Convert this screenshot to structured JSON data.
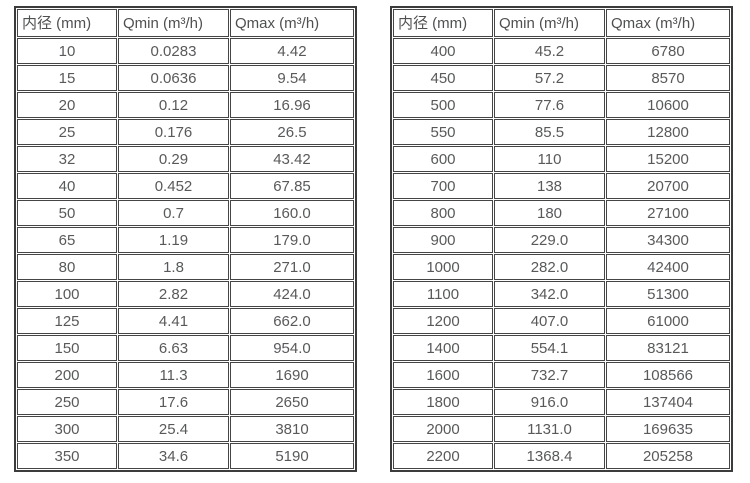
{
  "colors": {
    "background": "#ffffff",
    "border_outer": "#3c3c3c",
    "border_inner": "#454545",
    "text": "#58595b"
  },
  "tables": {
    "left": {
      "headers": [
        "内径 (mm)",
        "Qmin (m³/h)",
        "Qmax (m³/h)"
      ],
      "rows": [
        [
          "10",
          "0.0283",
          "4.42"
        ],
        [
          "15",
          "0.0636",
          "9.54"
        ],
        [
          "20",
          "0.12",
          "16.96"
        ],
        [
          "25",
          "0.176",
          "26.5"
        ],
        [
          "32",
          "0.29",
          "43.42"
        ],
        [
          "40",
          "0.452",
          "67.85"
        ],
        [
          "50",
          "0.7",
          "160.0"
        ],
        [
          "65",
          "1.19",
          "179.0"
        ],
        [
          "80",
          "1.8",
          "271.0"
        ],
        [
          "100",
          "2.82",
          "424.0"
        ],
        [
          "125",
          "4.41",
          "662.0"
        ],
        [
          "150",
          "6.63",
          "954.0"
        ],
        [
          "200",
          "11.3",
          "1690"
        ],
        [
          "250",
          "17.6",
          "2650"
        ],
        [
          "300",
          "25.4",
          "3810"
        ],
        [
          "350",
          "34.6",
          "5190"
        ]
      ]
    },
    "right": {
      "headers": [
        "内径 (mm)",
        "Qmin (m³/h)",
        "Qmax (m³/h)"
      ],
      "rows": [
        [
          "400",
          "45.2",
          "6780"
        ],
        [
          "450",
          "57.2",
          "8570"
        ],
        [
          "500",
          "77.6",
          "10600"
        ],
        [
          "550",
          "85.5",
          "12800"
        ],
        [
          "600",
          "110",
          "15200"
        ],
        [
          "700",
          "138",
          "20700"
        ],
        [
          "800",
          "180",
          "27100"
        ],
        [
          "900",
          "229.0",
          "34300"
        ],
        [
          "1000",
          "282.0",
          "42400"
        ],
        [
          "1100",
          "342.0",
          "51300"
        ],
        [
          "1200",
          "407.0",
          "61000"
        ],
        [
          "1400",
          "554.1",
          "83121"
        ],
        [
          "1600",
          "732.7",
          "108566"
        ],
        [
          "1800",
          "916.0",
          "137404"
        ],
        [
          "2000",
          "1131.0",
          "169635"
        ],
        [
          "2200",
          "1368.4",
          "205258"
        ]
      ]
    }
  }
}
